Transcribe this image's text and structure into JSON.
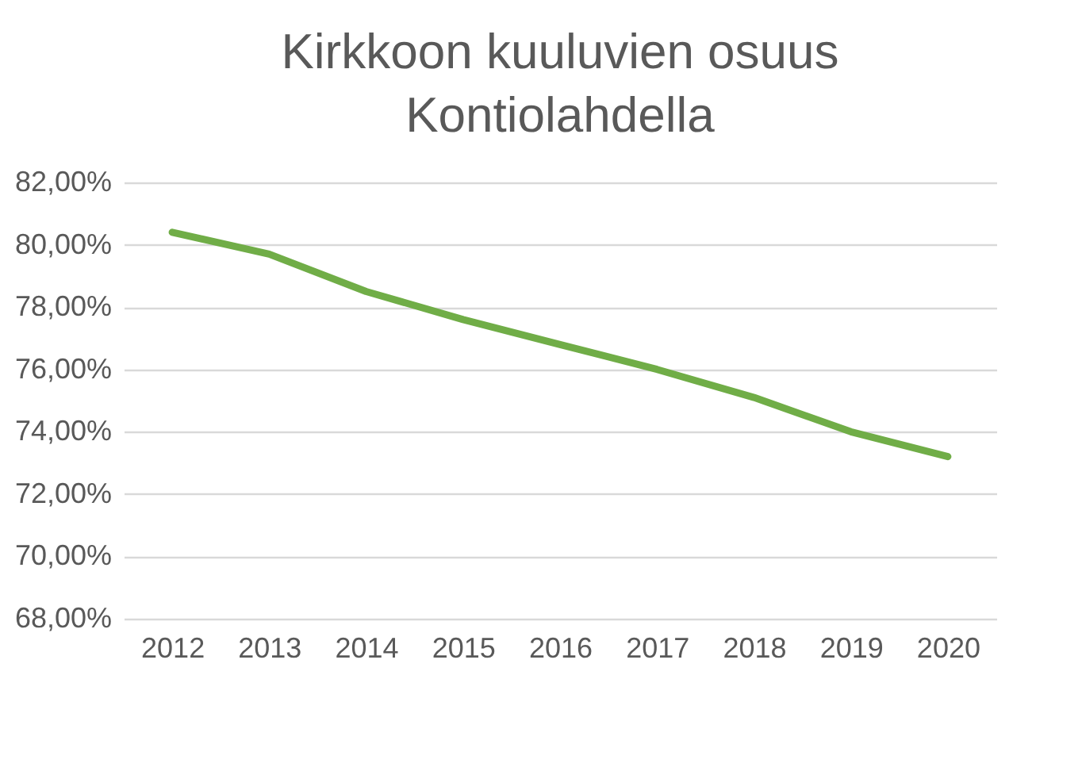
{
  "chart_data": {
    "type": "line",
    "title": "Kirkkoon kuuluvien osuus\nKontiolahdella",
    "categories": [
      "2012",
      "2013",
      "2014",
      "2015",
      "2016",
      "2017",
      "2018",
      "2019",
      "2020"
    ],
    "series": [
      {
        "color": "#70ad47",
        "values": [
          80.4,
          79.7,
          78.5,
          77.6,
          76.8,
          76.0,
          75.1,
          74.0,
          73.2
        ]
      }
    ],
    "ylim": [
      68,
      82
    ],
    "yticks": [
      {
        "value": 68,
        "label": "68,00%"
      },
      {
        "value": 70,
        "label": "70,00%"
      },
      {
        "value": 72,
        "label": "72,00%"
      },
      {
        "value": 74,
        "label": "74,00%"
      },
      {
        "value": 76,
        "label": "76,00%"
      },
      {
        "value": 78,
        "label": "78,00%"
      },
      {
        "value": 80,
        "label": "80,00%"
      },
      {
        "value": 82,
        "label": "82,00%"
      }
    ],
    "grid": "y"
  }
}
